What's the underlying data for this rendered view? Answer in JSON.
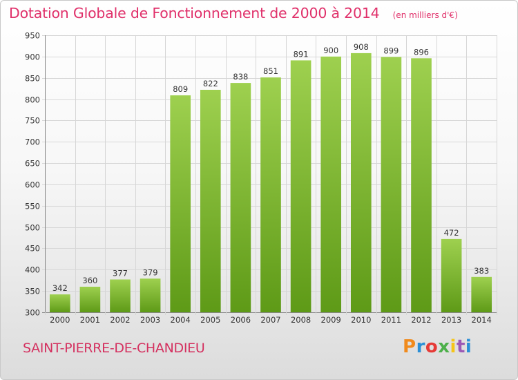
{
  "header": {
    "title": "Dotation Globale de Fonctionnement de 2000 à 2014",
    "unit": "(en milliers d'€)"
  },
  "footer": {
    "commune": "SAINT-PIERRE-DE-CHANDIEU",
    "logo_text": "Proxiti",
    "logo_colors": [
      "#f08a1c",
      "#2a8fd6",
      "#e63a36",
      "#4db04a",
      "#f5c518",
      "#9b59b6",
      "#2a8fd6"
    ]
  },
  "chart_data": {
    "type": "bar",
    "categories": [
      "2000",
      "2001",
      "2002",
      "2003",
      "2004",
      "2005",
      "2006",
      "2007",
      "2008",
      "2009",
      "2010",
      "2011",
      "2012",
      "2013",
      "2014"
    ],
    "values": [
      342,
      360,
      377,
      379,
      809,
      822,
      838,
      851,
      891,
      900,
      908,
      899,
      896,
      472,
      383
    ],
    "title": "Dotation Globale de Fonctionnement de 2000 à 2014",
    "xlabel": "",
    "ylabel": "",
    "ylim": [
      300,
      950
    ],
    "yticks": [
      300,
      350,
      400,
      450,
      500,
      550,
      600,
      650,
      700,
      750,
      800,
      850,
      900,
      950
    ],
    "grid": true,
    "bar_color_top": "#9ed04f",
    "bar_color_bottom": "#5e9a17"
  }
}
